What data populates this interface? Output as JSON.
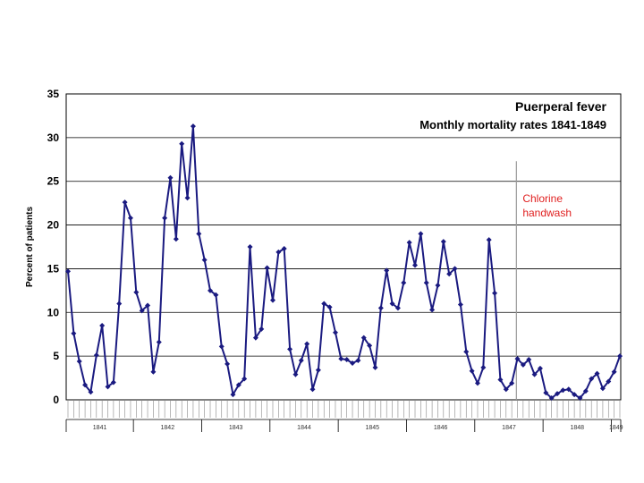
{
  "chart_data": {
    "type": "line",
    "title": "Puerperal fever",
    "subtitle": "Monthly mortality rates 1841-1849",
    "ylabel": "Percent of patients",
    "xlabel": "",
    "ylim": [
      0,
      35
    ],
    "yticks": [
      0,
      5,
      10,
      15,
      20,
      25,
      30,
      35
    ],
    "grid": true,
    "annotation": {
      "line1": "Chlorine",
      "line2": "handwash",
      "at_index": 79
    },
    "year_labels": [
      "1841",
      "1842",
      "1843",
      "1844",
      "1845",
      "1846",
      "1847",
      "1848",
      "1849"
    ],
    "line_color": "#1a1a80",
    "annotation_color": "#e02020",
    "series": [
      {
        "values": [
          14.7,
          7.6,
          4.4,
          1.7,
          0.9,
          5.1,
          8.5,
          1.5,
          2.0,
          11.0,
          22.6,
          20.8,
          12.3,
          10.2,
          10.8,
          3.2,
          6.6,
          20.8,
          25.4,
          18.4,
          29.3,
          23.1,
          31.3,
          19.0,
          16.0,
          12.5,
          12.0,
          6.1,
          4.1,
          0.6,
          1.7,
          2.4,
          17.5,
          7.1,
          8.1,
          15.1,
          11.4,
          16.9,
          17.3,
          5.8,
          2.9,
          4.5,
          6.4,
          1.2,
          3.4,
          11.0,
          10.6,
          7.7,
          4.7,
          4.6,
          4.2,
          4.5,
          7.1,
          6.2,
          3.7,
          10.5,
          14.8,
          11.0,
          10.5,
          13.4,
          18.0,
          15.4,
          19.0,
          13.4,
          10.3,
          13.1,
          18.1,
          14.4,
          15.0,
          10.9,
          5.5,
          3.3,
          1.9,
          3.7,
          18.3,
          12.2,
          2.3,
          1.2,
          1.9,
          4.7,
          4.0,
          4.6,
          2.9,
          3.6,
          0.8,
          0.2,
          0.7,
          1.1,
          1.2,
          0.6,
          0.2,
          1.0,
          2.4,
          3.0,
          1.3,
          2.1,
          3.2,
          5.0
        ]
      }
    ]
  }
}
